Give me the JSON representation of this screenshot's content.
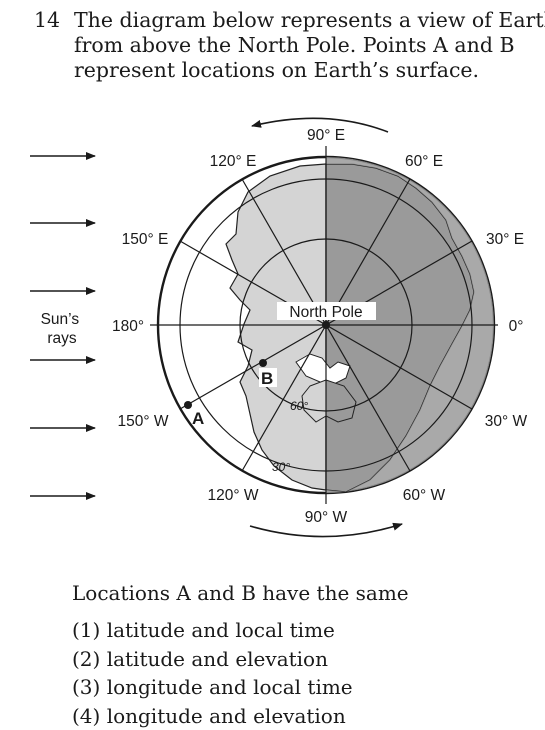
{
  "question": {
    "number": "14",
    "lines": [
      "The diagram below represents a view of Earth",
      "from above the North Pole. Points A and B",
      "represent locations on Earth’s surface."
    ]
  },
  "diagram": {
    "sun_label_line1": "Sun’s",
    "sun_label_line2": "rays",
    "center_label": "North Pole",
    "point_a": "A",
    "point_b": "B",
    "latitude_labels": {
      "inner": "60°",
      "outer": "30°"
    },
    "longitude_labels": {
      "top": "90° E",
      "upper_left": "120° E",
      "upper_right": "60° E",
      "left_upper": "150° E",
      "right_upper": "30° E",
      "left": "180°",
      "right": "0°",
      "left_lower": "150° W",
      "right_lower": "30° W",
      "lower_left": "120° W",
      "lower_right": "60° W",
      "bottom": "90° W"
    },
    "colors": {
      "day_side": "#d4d4d4",
      "night_side": "#9a9a9a",
      "land_line": "#222222"
    }
  },
  "prompt": "Locations A and B have the same",
  "choices": [
    "(1) latitude and local time",
    "(2) latitude and elevation",
    "(3) longitude and local time",
    "(4) longitude and elevation"
  ]
}
